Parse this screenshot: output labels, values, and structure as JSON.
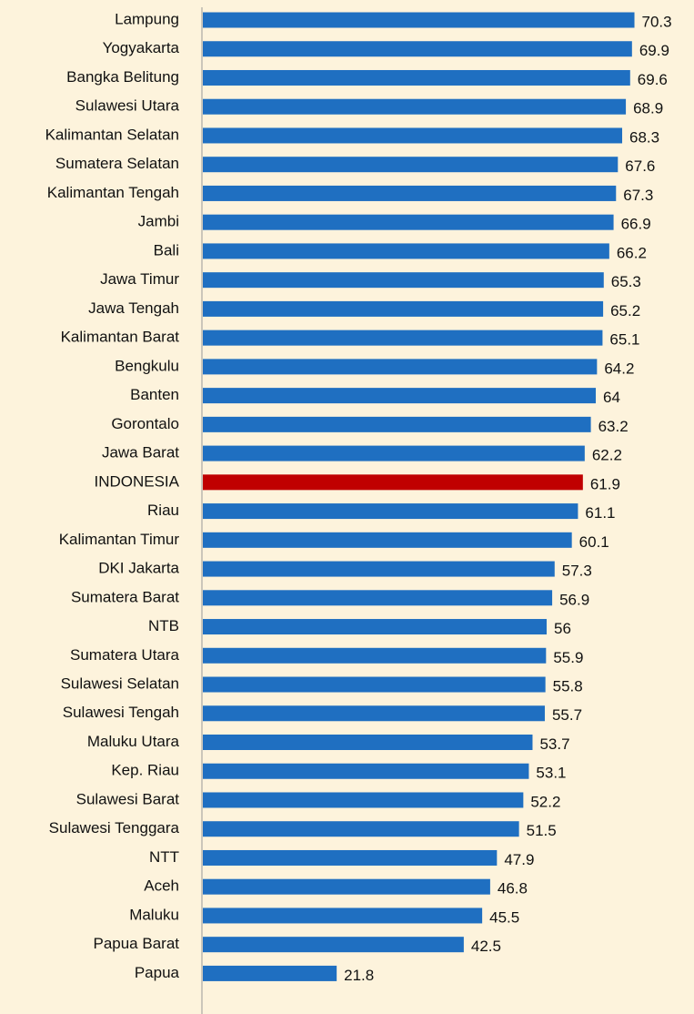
{
  "chart_data": {
    "type": "barh",
    "categories": [
      "Lampung",
      "Yogyakarta",
      "Bangka Belitung",
      "Sulawesi Utara",
      "Kalimantan Selatan",
      "Sumatera Selatan",
      "Kalimantan Tengah",
      "Jambi",
      "Bali",
      "Jawa Timur",
      "Jawa Tengah",
      "Kalimantan Barat",
      "Bengkulu",
      "Banten",
      "Gorontalo",
      "Jawa Barat",
      "INDONESIA",
      "Riau",
      "Kalimantan Timur",
      "DKI Jakarta",
      "Sumatera Barat",
      "NTB",
      "Sumatera Utara",
      "Sulawesi Selatan",
      "Sulawesi Tengah",
      "Maluku Utara",
      "Kep. Riau",
      "Sulawesi Barat",
      "Sulawesi Tenggara",
      "NTT",
      "Aceh",
      "Maluku",
      "Papua Barat",
      "Papua"
    ],
    "values": [
      70.3,
      69.9,
      69.6,
      68.9,
      68.3,
      67.6,
      67.3,
      66.9,
      66.2,
      65.3,
      65.2,
      65.1,
      64.2,
      64,
      63.2,
      62.2,
      61.9,
      61.1,
      60.1,
      57.3,
      56.9,
      56,
      55.9,
      55.8,
      55.7,
      53.7,
      53.1,
      52.2,
      51.5,
      47.9,
      46.8,
      45.5,
      42.5,
      21.8
    ],
    "colors": [
      "#1f6fc1",
      "#1f6fc1",
      "#1f6fc1",
      "#1f6fc1",
      "#1f6fc1",
      "#1f6fc1",
      "#1f6fc1",
      "#1f6fc1",
      "#1f6fc1",
      "#1f6fc1",
      "#1f6fc1",
      "#1f6fc1",
      "#1f6fc1",
      "#1f6fc1",
      "#1f6fc1",
      "#1f6fc1",
      "#c00000",
      "#1f6fc1",
      "#1f6fc1",
      "#1f6fc1",
      "#1f6fc1",
      "#1f6fc1",
      "#1f6fc1",
      "#1f6fc1",
      "#1f6fc1",
      "#1f6fc1",
      "#1f6fc1",
      "#1f6fc1",
      "#1f6fc1",
      "#1f6fc1",
      "#1f6fc1",
      "#1f6fc1",
      "#1f6fc1",
      "#1f6fc1"
    ],
    "xlim": [
      0,
      80
    ]
  }
}
